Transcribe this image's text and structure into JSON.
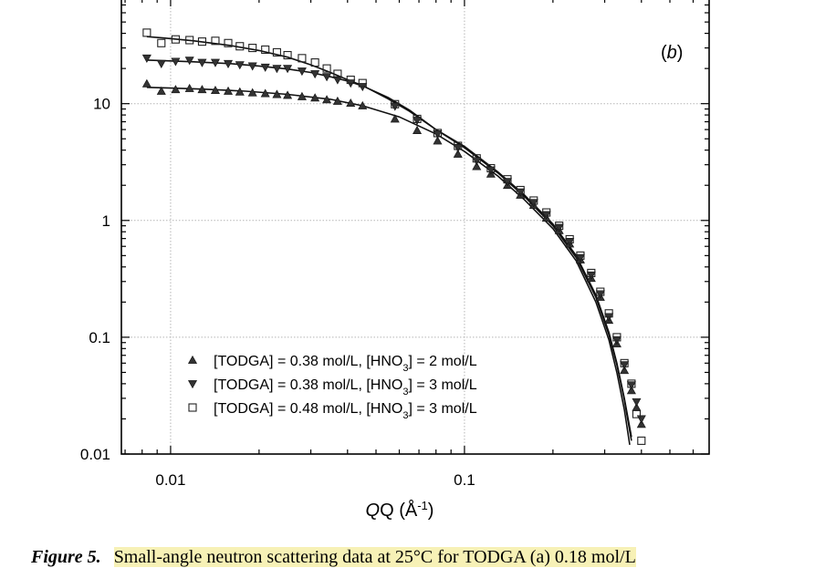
{
  "chart_data": {
    "type": "scatter",
    "panel_label": "b",
    "xlabel": {
      "main": "Q (Å",
      "sup": "-1",
      "end": ")"
    },
    "ylabel": "",
    "x_scale": "log",
    "y_scale": "log",
    "xlim": [
      0.0068,
      0.68
    ],
    "ylim": [
      0.01,
      80
    ],
    "x_ticks": [
      {
        "value": 0.01,
        "label": "0.01"
      },
      {
        "value": 0.1,
        "label": "0.1"
      }
    ],
    "y_ticks": [
      {
        "value": 0.01,
        "label": "0.01"
      },
      {
        "value": 0.1,
        "label": "0.1"
      },
      {
        "value": 1,
        "label": "1"
      },
      {
        "value": 10,
        "label": "10"
      }
    ],
    "grid": true,
    "legend_position": "bottom-left",
    "series": [
      {
        "name": "[TODGA] = 0.38 mol/L, [HNO3] = 2 mol/L",
        "legend_parts": [
          "[TODGA] = 0.38 mol/L, [HNO",
          "3",
          "] = 2 mol/L"
        ],
        "marker": "triangle-up",
        "points": [
          [
            0.0083,
            14.8
          ],
          [
            0.0093,
            12.8
          ],
          [
            0.0104,
            13.2
          ],
          [
            0.0116,
            13.5
          ],
          [
            0.0128,
            13.2
          ],
          [
            0.0142,
            13.0
          ],
          [
            0.0157,
            12.8
          ],
          [
            0.0172,
            12.6
          ],
          [
            0.019,
            12.4
          ],
          [
            0.021,
            12.2
          ],
          [
            0.023,
            12.0
          ],
          [
            0.025,
            11.8
          ],
          [
            0.028,
            11.5
          ],
          [
            0.031,
            11.2
          ],
          [
            0.034,
            10.8
          ],
          [
            0.037,
            10.5
          ],
          [
            0.041,
            10.1
          ],
          [
            0.045,
            9.6
          ],
          [
            0.058,
            7.4
          ],
          [
            0.069,
            5.9
          ],
          [
            0.081,
            4.8
          ],
          [
            0.095,
            3.7
          ],
          [
            0.11,
            2.9
          ],
          [
            0.123,
            2.5
          ],
          [
            0.14,
            2.0
          ],
          [
            0.155,
            1.65
          ],
          [
            0.172,
            1.35
          ],
          [
            0.19,
            1.05
          ],
          [
            0.21,
            0.82
          ],
          [
            0.228,
            0.63
          ],
          [
            0.248,
            0.46
          ],
          [
            0.27,
            0.32
          ],
          [
            0.29,
            0.22
          ],
          [
            0.31,
            0.14
          ],
          [
            0.33,
            0.088
          ],
          [
            0.35,
            0.052
          ],
          [
            0.37,
            0.035
          ],
          [
            0.385,
            0.025
          ],
          [
            0.4,
            0.018
          ]
        ],
        "fit": [
          [
            0.0083,
            13.8
          ],
          [
            0.0091,
            13.7
          ],
          [
            0.01,
            13.6
          ],
          [
            0.013,
            13.3
          ],
          [
            0.018,
            12.8
          ],
          [
            0.025,
            12.0
          ],
          [
            0.035,
            10.9
          ],
          [
            0.045,
            9.6
          ],
          [
            0.06,
            7.7
          ],
          [
            0.08,
            5.5
          ],
          [
            0.1,
            3.9
          ],
          [
            0.13,
            2.4
          ],
          [
            0.16,
            1.5
          ],
          [
            0.2,
            0.85
          ],
          [
            0.24,
            0.45
          ],
          [
            0.28,
            0.2
          ],
          [
            0.31,
            0.095
          ],
          [
            0.33,
            0.05
          ],
          [
            0.35,
            0.024
          ],
          [
            0.365,
            0.012
          ]
        ]
      },
      {
        "name": "[TODGA] = 0.38 mol/L, [HNO3] = 3 mol/L",
        "legend_parts": [
          "[TODGA] = 0.38 mol/L, [HNO",
          "3",
          "] = 3 mol/L"
        ],
        "marker": "triangle-down",
        "points": [
          [
            0.0083,
            24.5
          ],
          [
            0.0093,
            22.0
          ],
          [
            0.0104,
            23.0
          ],
          [
            0.0116,
            23.5
          ],
          [
            0.0128,
            22.5
          ],
          [
            0.0142,
            22.5
          ],
          [
            0.0157,
            22.0
          ],
          [
            0.0172,
            21.5
          ],
          [
            0.019,
            21.0
          ],
          [
            0.021,
            20.5
          ],
          [
            0.023,
            20.0
          ],
          [
            0.025,
            20.0
          ],
          [
            0.028,
            19.0
          ],
          [
            0.031,
            18.0
          ],
          [
            0.034,
            17.0
          ],
          [
            0.037,
            16.0
          ],
          [
            0.041,
            15.0
          ],
          [
            0.045,
            14.0
          ],
          [
            0.058,
            9.5
          ],
          [
            0.069,
            7.2
          ],
          [
            0.081,
            5.5
          ],
          [
            0.095,
            4.2
          ],
          [
            0.11,
            3.25
          ],
          [
            0.123,
            2.7
          ],
          [
            0.14,
            2.15
          ],
          [
            0.155,
            1.75
          ],
          [
            0.172,
            1.42
          ],
          [
            0.19,
            1.12
          ],
          [
            0.21,
            0.87
          ],
          [
            0.228,
            0.66
          ],
          [
            0.248,
            0.48
          ],
          [
            0.27,
            0.34
          ],
          [
            0.29,
            0.235
          ],
          [
            0.31,
            0.15
          ],
          [
            0.33,
            0.095
          ],
          [
            0.35,
            0.058
          ],
          [
            0.37,
            0.039
          ],
          [
            0.385,
            0.028
          ],
          [
            0.4,
            0.02
          ]
        ],
        "fit": [
          [
            0.0083,
            23.6
          ],
          [
            0.0095,
            23.3
          ],
          [
            0.012,
            22.8
          ],
          [
            0.016,
            22.0
          ],
          [
            0.02,
            21.0
          ],
          [
            0.025,
            19.8
          ],
          [
            0.03,
            18.5
          ],
          [
            0.035,
            17.0
          ],
          [
            0.04,
            15.6
          ],
          [
            0.045,
            14.2
          ],
          [
            0.055,
            11.3
          ],
          [
            0.065,
            8.8
          ],
          [
            0.08,
            6.0
          ],
          [
            0.1,
            4.2
          ],
          [
            0.13,
            2.55
          ],
          [
            0.16,
            1.6
          ],
          [
            0.2,
            0.9
          ],
          [
            0.24,
            0.48
          ],
          [
            0.28,
            0.22
          ],
          [
            0.31,
            0.105
          ],
          [
            0.33,
            0.058
          ],
          [
            0.35,
            0.029
          ],
          [
            0.37,
            0.013
          ]
        ]
      },
      {
        "name": "[TODGA] = 0.48 mol/L, [HNO3] = 3 mol/L",
        "legend_parts": [
          "[TODGA] = 0.48 mol/L, [HNO",
          "3",
          "] = 3 mol/L"
        ],
        "marker": "square-open",
        "points": [
          [
            0.0083,
            40.5
          ],
          [
            0.0093,
            33.0
          ],
          [
            0.0104,
            35.5
          ],
          [
            0.0116,
            35.0
          ],
          [
            0.0128,
            34.0
          ],
          [
            0.0142,
            34.5
          ],
          [
            0.0157,
            33.0
          ],
          [
            0.0172,
            31.0
          ],
          [
            0.019,
            30.0
          ],
          [
            0.021,
            29.0
          ],
          [
            0.023,
            27.5
          ],
          [
            0.025,
            26.0
          ],
          [
            0.028,
            24.5
          ],
          [
            0.031,
            22.5
          ],
          [
            0.034,
            20.0
          ],
          [
            0.037,
            18.0
          ],
          [
            0.041,
            16.0
          ],
          [
            0.045,
            15.0
          ],
          [
            0.058,
            9.9
          ],
          [
            0.069,
            7.4
          ],
          [
            0.081,
            5.6
          ],
          [
            0.095,
            4.35
          ],
          [
            0.11,
            3.4
          ],
          [
            0.123,
            2.8
          ],
          [
            0.14,
            2.25
          ],
          [
            0.155,
            1.82
          ],
          [
            0.172,
            1.48
          ],
          [
            0.19,
            1.17
          ],
          [
            0.21,
            0.9
          ],
          [
            0.228,
            0.69
          ],
          [
            0.248,
            0.5
          ],
          [
            0.27,
            0.355
          ],
          [
            0.29,
            0.245
          ],
          [
            0.31,
            0.16
          ],
          [
            0.33,
            0.1
          ],
          [
            0.35,
            0.06
          ],
          [
            0.37,
            0.04
          ],
          [
            0.385,
            0.022
          ],
          [
            0.4,
            0.013
          ]
        ],
        "fit": [
          [
            0.0083,
            37.5
          ],
          [
            0.0095,
            36.5
          ],
          [
            0.012,
            34.5
          ],
          [
            0.016,
            31.5
          ],
          [
            0.02,
            28.5
          ],
          [
            0.025,
            25.0
          ],
          [
            0.03,
            21.5
          ],
          [
            0.035,
            18.5
          ],
          [
            0.04,
            16.0
          ],
          [
            0.045,
            14.3
          ],
          [
            0.055,
            11.0
          ],
          [
            0.065,
            8.6
          ],
          [
            0.08,
            6.0
          ],
          [
            0.1,
            4.3
          ],
          [
            0.13,
            2.6
          ],
          [
            0.16,
            1.65
          ],
          [
            0.2,
            0.93
          ],
          [
            0.24,
            0.5
          ],
          [
            0.28,
            0.23
          ],
          [
            0.31,
            0.11
          ],
          [
            0.33,
            0.06
          ],
          [
            0.35,
            0.03
          ],
          [
            0.37,
            0.014
          ]
        ]
      }
    ]
  },
  "caption": {
    "label": "Figure 5.",
    "text": "Small-angle neutron scattering data at 25°C for TODGA (a) 0.18 mol/L"
  }
}
